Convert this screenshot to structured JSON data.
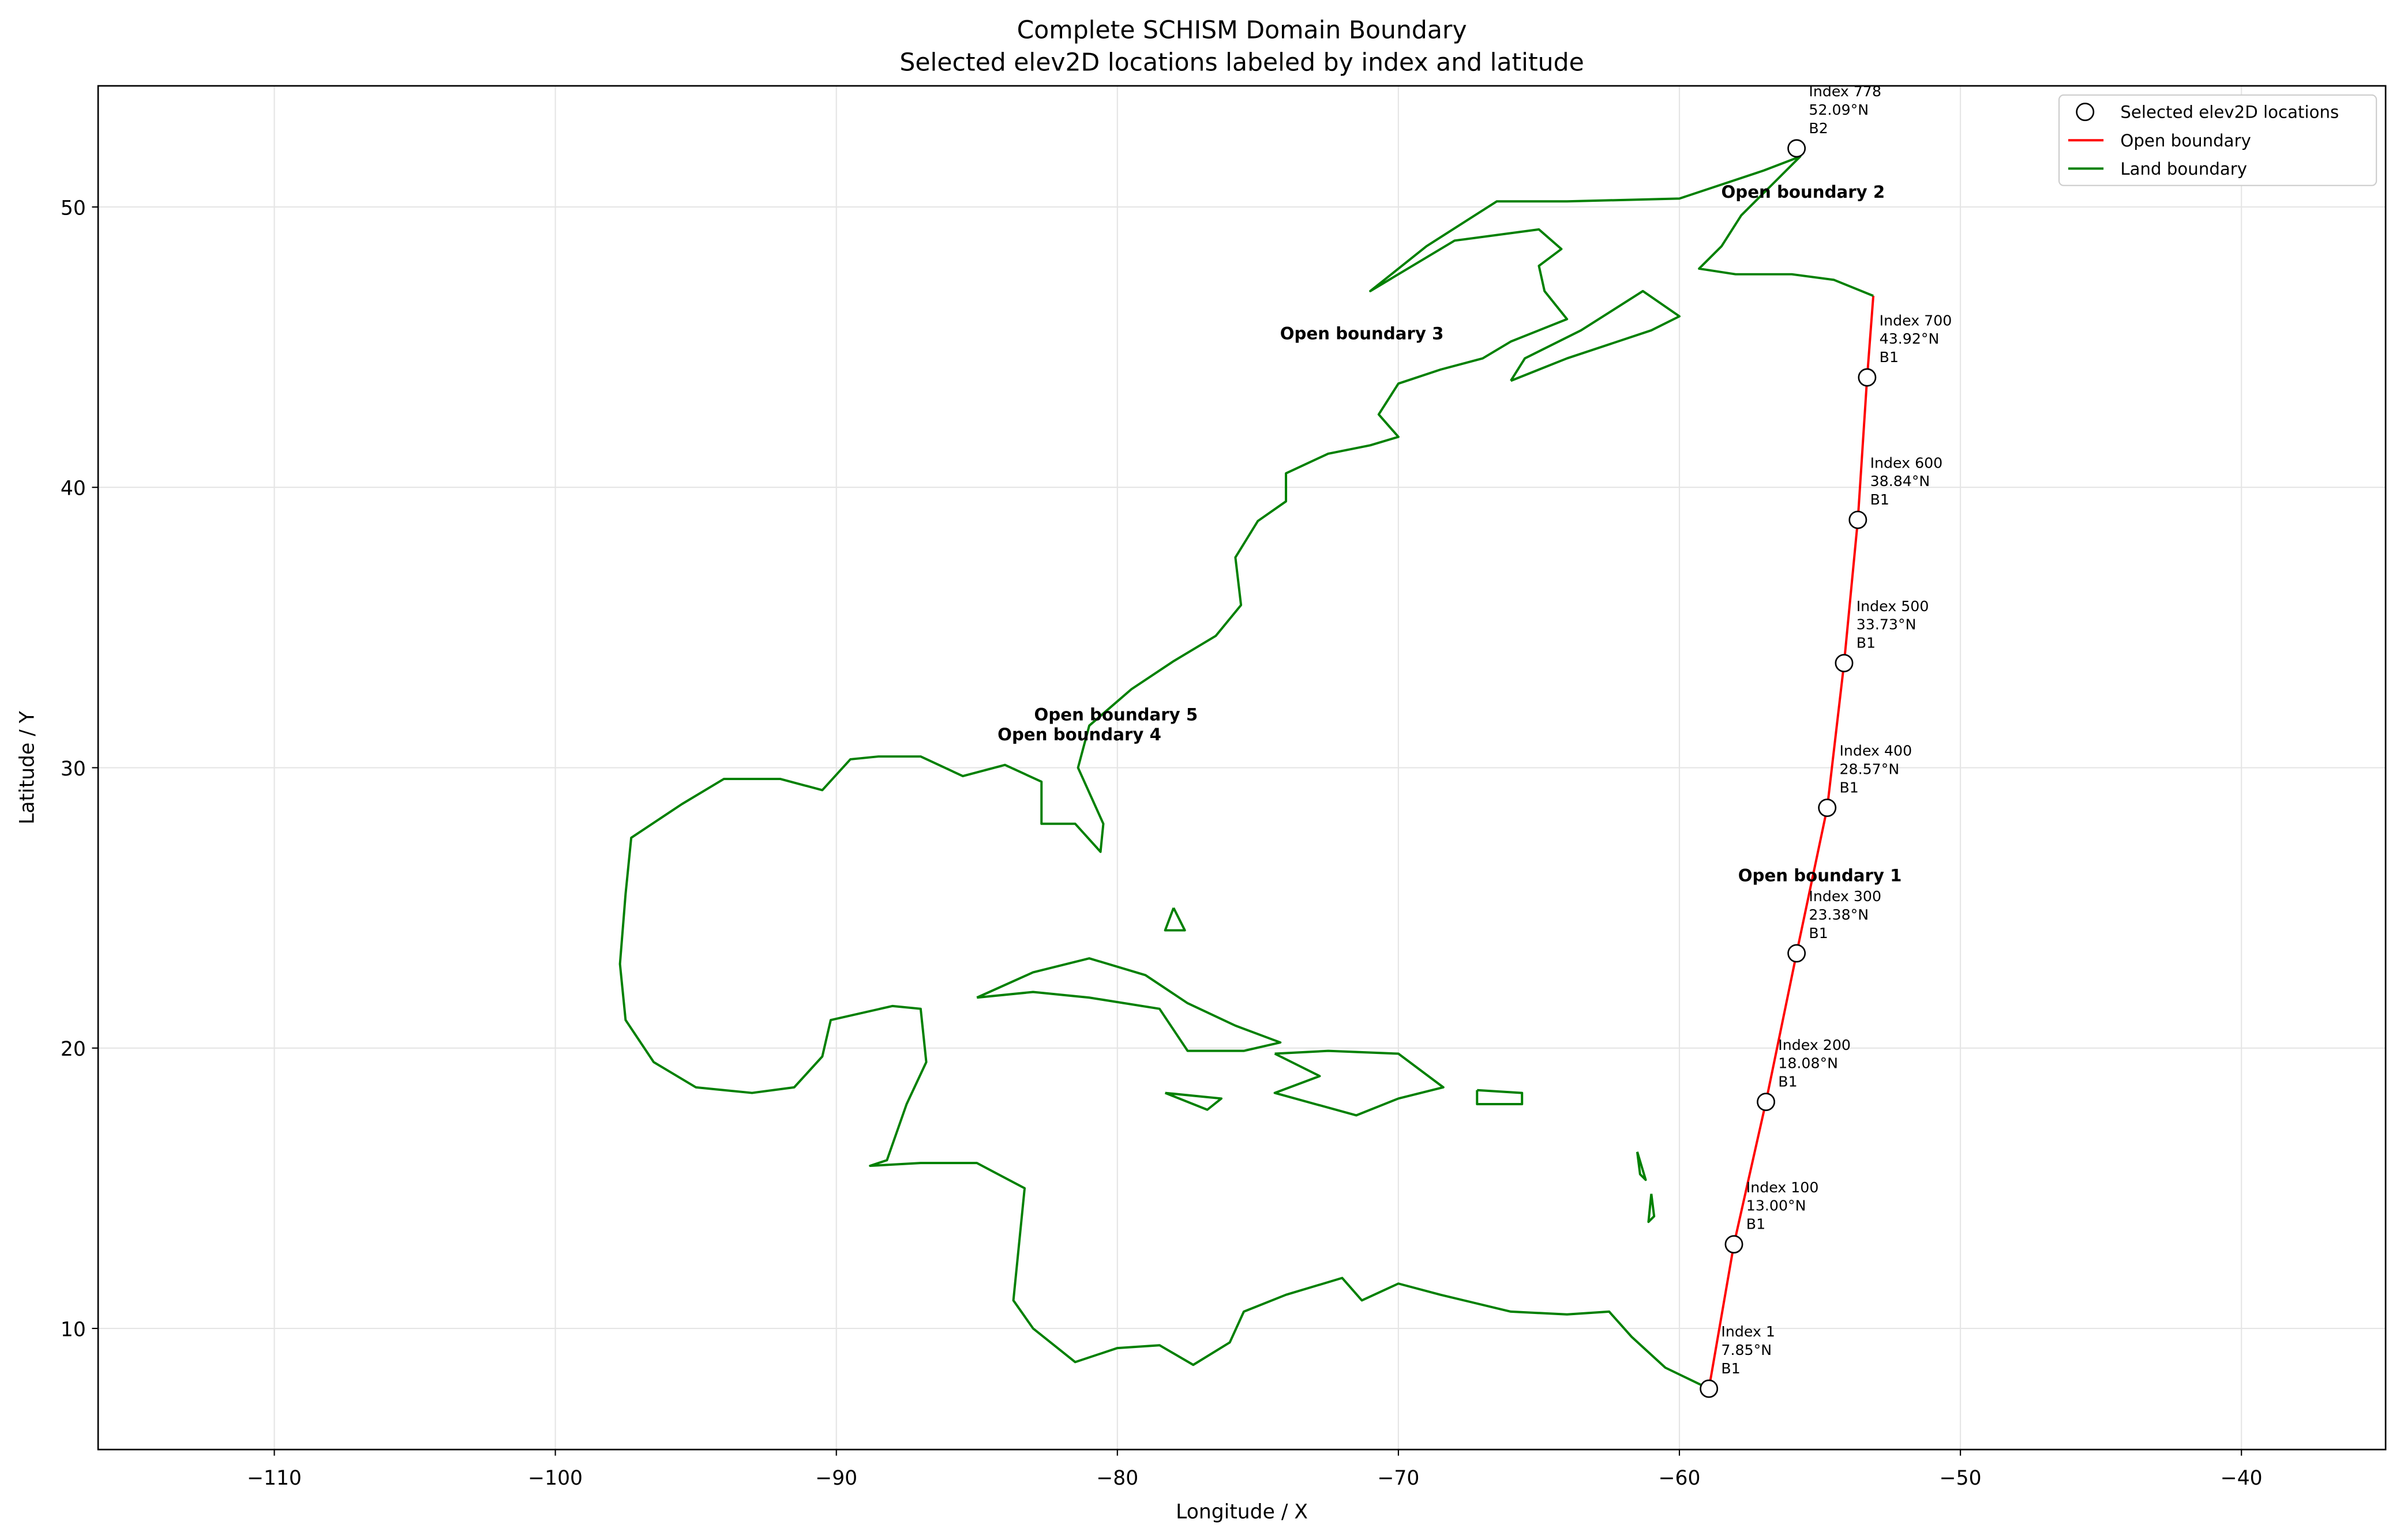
{
  "chart_data": {
    "type": "line",
    "title": "Complete SCHISM Domain Boundary",
    "subtitle": "Selected elev2D locations labeled by index and latitude",
    "x_label": "Longitude / X",
    "y_label": "Latitude / Y",
    "xlim": [
      -116.27,
      -34.87
    ],
    "ylim": [
      5.68,
      54.32
    ],
    "xticks": [
      {
        "value": -110,
        "label": "−110"
      },
      {
        "value": -100,
        "label": "−100"
      },
      {
        "value": -90,
        "label": "−90"
      },
      {
        "value": -80,
        "label": "−80"
      },
      {
        "value": -70,
        "label": "−70"
      },
      {
        "value": -60,
        "label": "−60"
      },
      {
        "value": -50,
        "label": "−50"
      },
      {
        "value": -40,
        "label": "−40"
      }
    ],
    "yticks": [
      10,
      20,
      30,
      40,
      50
    ],
    "grid": true,
    "legend": "upper right",
    "series": [
      {
        "name": "Selected elev2D locations",
        "style": "markers",
        "color": "#000000",
        "x": [
          -58.95,
          -58.06,
          -56.92,
          -55.83,
          -54.74,
          -54.14,
          -53.65,
          -53.32,
          -55.83
        ],
        "values": [
          7.85,
          13.0,
          18.08,
          23.38,
          28.57,
          33.73,
          38.84,
          43.92,
          52.09
        ],
        "point_labels": [
          [
            "Index 1",
            "7.85°N",
            "B1"
          ],
          [
            "Index 100",
            "13.00°N",
            "B1"
          ],
          [
            "Index 200",
            "18.08°N",
            "B1"
          ],
          [
            "Index 300",
            "23.38°N",
            "B1"
          ],
          [
            "Index 400",
            "28.57°N",
            "B1"
          ],
          [
            "Index 500",
            "33.73°N",
            "B1"
          ],
          [
            "Index 600",
            "38.84°N",
            "B1"
          ],
          [
            "Index 700",
            "43.92°N",
            "B1"
          ],
          [
            "Index 778",
            "52.09°N",
            "B2"
          ]
        ]
      },
      {
        "name": "Open boundary",
        "style": "line",
        "color": "#ff0000",
        "x": [
          -58.95,
          -58.06,
          -56.92,
          -55.83,
          -54.74,
          -54.14,
          -53.65,
          -53.32,
          -53.1
        ],
        "values": [
          7.85,
          13.0,
          18.08,
          23.38,
          28.57,
          33.73,
          38.84,
          43.92,
          46.83
        ]
      },
      {
        "name": "Land boundary",
        "style": "line",
        "color": "#008000",
        "x": [
          -53.1,
          -54.5,
          -56,
          -58,
          -59.3,
          -58.5,
          -57.8,
          -56.5,
          -55.7,
          -57,
          -60,
          -64,
          -66.5,
          -69,
          -71,
          -68,
          -65,
          -64.2,
          -65,
          -64.8,
          -64,
          -66,
          -67,
          -68.5,
          -70,
          -70.7,
          -70,
          -71,
          -72.5,
          -74,
          -74,
          -75,
          -75.8,
          -75.6,
          -76.5,
          -78,
          -79.5,
          -81,
          -81.4,
          -80.5,
          -80.6,
          -81.5,
          -82.7,
          -82.7,
          -84,
          -85.5,
          -87,
          -88.5,
          -89.5,
          -90.5,
          -92,
          -94,
          -95.5,
          -97.3,
          -97.5,
          -97.7,
          -97.5,
          -96.5,
          -95,
          -93,
          -91.5,
          -90.5,
          -90.2,
          -88,
          -87,
          -86.8,
          -87.5,
          -88.2,
          -88.8,
          -87,
          -85,
          -83.3,
          -83.5,
          -83.7,
          -83,
          -81.5,
          -80,
          -78.5,
          -77.3,
          -76,
          -75.5,
          -74,
          -72,
          -71.3,
          -70,
          -68.5,
          -66,
          -64,
          -62.5,
          -61.7,
          -60.5,
          -58.95,
          null,
          -85,
          -83,
          -81,
          -79,
          -77.5,
          -75.8,
          -74.2,
          -75.5,
          -77.5,
          -78.5,
          -81,
          -83,
          -85,
          null,
          -74.4,
          -72.5,
          -70,
          -68.4,
          -70,
          -71.5,
          -74.4,
          -72.8,
          -74.4,
          null,
          -78.3,
          -76.3,
          -76.8,
          -78.3,
          null,
          -67.2,
          -65.6,
          -65.6,
          -67.2,
          -67.2,
          null,
          -66,
          -64,
          -61,
          -60,
          -61.3,
          -63.5,
          -65.5,
          -66,
          null,
          -78,
          -77.6,
          -78.3,
          -78,
          null,
          -61.5,
          -61.2,
          -61.4,
          -61.5,
          null,
          -61,
          -60.9,
          -61.1,
          -61
        ],
        "values": [
          46.83,
          47.4,
          47.6,
          47.6,
          47.8,
          48.6,
          49.7,
          51,
          51.8,
          51.3,
          50.3,
          50.2,
          50.2,
          48.6,
          47,
          48.8,
          49.2,
          48.5,
          47.9,
          47,
          46,
          45.2,
          44.6,
          44.2,
          43.7,
          42.6,
          41.8,
          41.5,
          41.2,
          40.5,
          39.5,
          38.8,
          37.5,
          35.8,
          34.7,
          33.8,
          32.8,
          31.5,
          30,
          28,
          27,
          28,
          28,
          29.5,
          30.1,
          29.7,
          30.4,
          30.4,
          30.3,
          29.2,
          29.6,
          29.6,
          28.7,
          27.5,
          25.5,
          23,
          21,
          19.5,
          18.6,
          18.4,
          18.6,
          19.7,
          21,
          21.5,
          21.4,
          19.5,
          18,
          16,
          15.8,
          15.9,
          15.9,
          15,
          13,
          11,
          10,
          8.8,
          9.3,
          9.4,
          8.7,
          9.5,
          10.6,
          11.2,
          11.8,
          11,
          11.6,
          11.2,
          10.6,
          10.5,
          10.6,
          9.7,
          8.6,
          7.85,
          null,
          21.8,
          22.7,
          23.2,
          22.6,
          21.6,
          20.8,
          20.2,
          19.9,
          19.9,
          21.4,
          21.8,
          22,
          21.8,
          null,
          19.8,
          19.9,
          19.8,
          18.6,
          18.2,
          17.6,
          18.4,
          19,
          19.8,
          null,
          18.4,
          18.2,
          17.8,
          18.4,
          null,
          18.5,
          18.4,
          18,
          18,
          18.5,
          null,
          43.8,
          44.6,
          45.6,
          46.1,
          47,
          45.6,
          44.6,
          43.8,
          null,
          25,
          24.2,
          24.2,
          25,
          null,
          16.3,
          15.3,
          15.5,
          16.3,
          null,
          14.8,
          14,
          13.8,
          14.8
        ]
      }
    ],
    "annotations": [
      {
        "text": "Open boundary 1",
        "x": -55.0,
        "y": 26.17
      },
      {
        "text": "Open boundary 2",
        "x": -55.6,
        "y": 50.55
      },
      {
        "text": "Open boundary 3",
        "x": -71.3,
        "y": 45.5
      },
      {
        "text": "Open boundary 4",
        "x": -81.35,
        "y": 31.2
      },
      {
        "text": "Open boundary 5",
        "x": -80.05,
        "y": 31.9
      }
    ]
  }
}
